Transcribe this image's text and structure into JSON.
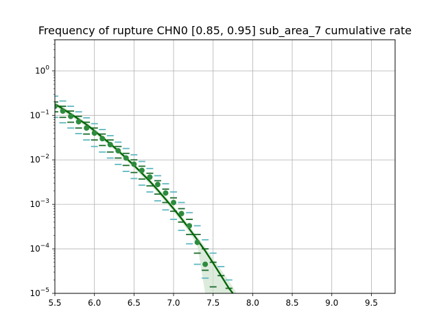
{
  "chart_data": {
    "type": "scatter",
    "title": "Frequency of rupture CHN0 [0.85, 0.95] sub_area_7 cumulative rate",
    "xlabel": "",
    "ylabel": "",
    "xlim": [
      5.5,
      9.8
    ],
    "ylim": [
      1e-05,
      5
    ],
    "yscale": "log",
    "grid": true,
    "x_ticks": [
      5.5,
      6.0,
      6.5,
      7.0,
      7.5,
      8.0,
      8.5,
      9.0,
      9.5
    ],
    "x_tick_labels": [
      "5.5",
      "6.0",
      "6.5",
      "7.0",
      "7.5",
      "8.0",
      "8.5",
      "9.0",
      "9.5"
    ],
    "y_ticks": [
      1e-05,
      0.0001,
      0.001,
      0.01,
      0.1,
      1
    ],
    "y_tick_labels": [
      {
        "base": "10",
        "exp": "−5"
      },
      {
        "base": "10",
        "exp": "−4"
      },
      {
        "base": "10",
        "exp": "−3"
      },
      {
        "base": "10",
        "exp": "−2"
      },
      {
        "base": "10",
        "exp": "−1"
      },
      {
        "base": "10",
        "exp": "0"
      }
    ],
    "colors": {
      "model_line": "#006400",
      "model_band": "#cfe3cf",
      "points": "#2e8b3e",
      "inner_bounds": "#1a6b2a",
      "outer_bounds": "#5fb8c0"
    },
    "model_curve": {
      "x": [
        5.5,
        5.6,
        5.7,
        5.8,
        5.9,
        6.0,
        6.1,
        6.2,
        6.3,
        6.4,
        6.5,
        6.6,
        6.7,
        6.8,
        6.9,
        7.0,
        7.1,
        7.2,
        7.3,
        7.4,
        7.5,
        7.6,
        7.7,
        7.75
      ],
      "y": [
        0.18,
        0.14,
        0.108,
        0.082,
        0.062,
        0.045,
        0.032,
        0.023,
        0.016,
        0.011,
        0.0075,
        0.005,
        0.0033,
        0.0021,
        0.0013,
        0.0008,
        0.00048,
        0.00028,
        0.00016,
        9e-05,
        4.8e-05,
        2.5e-05,
        1.3e-05,
        1e-05
      ]
    },
    "model_band": {
      "x": [
        5.5,
        5.6,
        5.7,
        5.8,
        5.9,
        6.0,
        6.1,
        6.2,
        6.3,
        6.4,
        6.5,
        6.6,
        6.7,
        6.8,
        6.9,
        7.0,
        7.1,
        7.2,
        7.3,
        7.4,
        7.5,
        7.6,
        7.7,
        7.8
      ],
      "upper": [
        0.2,
        0.16,
        0.122,
        0.092,
        0.07,
        0.051,
        0.036,
        0.026,
        0.018,
        0.0125,
        0.0085,
        0.0057,
        0.0037,
        0.0024,
        0.0015,
        0.00092,
        0.00056,
        0.00033,
        0.00019,
        0.00011,
        6e-05,
        3.4e-05,
        1.9e-05,
        1e-05
      ],
      "lower": [
        0.16,
        0.12,
        0.094,
        0.072,
        0.054,
        0.039,
        0.028,
        0.02,
        0.014,
        0.0096,
        0.0065,
        0.0043,
        0.0028,
        0.0018,
        0.0011,
        0.00068,
        0.0004,
        0.00023,
        0.00012,
        1e-05,
        1e-05,
        1e-05,
        1e-05,
        1e-05
      ]
    },
    "observed_points": {
      "x": [
        5.5,
        5.6,
        5.7,
        5.8,
        5.9,
        6.0,
        6.1,
        6.2,
        6.3,
        6.4,
        6.5,
        6.6,
        6.7,
        6.8,
        6.9,
        7.0,
        7.1,
        7.2,
        7.3,
        7.4
      ],
      "y": [
        0.16,
        0.125,
        0.095,
        0.072,
        0.052,
        0.04,
        0.03,
        0.022,
        0.016,
        0.011,
        0.008,
        0.0058,
        0.0041,
        0.0028,
        0.0018,
        0.0011,
        0.00062,
        0.00033,
        0.00014,
        4.5e-05
      ]
    },
    "error_bars": {
      "x": [
        5.5,
        5.6,
        5.7,
        5.8,
        5.9,
        6.0,
        6.1,
        6.2,
        6.3,
        6.4,
        6.5,
        6.6,
        6.7,
        6.8,
        6.9,
        7.0,
        7.1,
        7.2,
        7.3,
        7.4,
        7.5,
        7.6,
        7.7
      ],
      "inner_upper": [
        0.2,
        0.16,
        0.125,
        0.095,
        0.07,
        0.052,
        0.038,
        0.028,
        0.02,
        0.014,
        0.01,
        0.0072,
        0.005,
        0.0034,
        0.0022,
        0.0014,
        0.0008,
        0.00046,
        0.00021,
        0.0001,
        5e-05,
        2.5e-05,
        1.3e-05
      ],
      "inner_lower": [
        0.12,
        0.09,
        0.07,
        0.052,
        0.038,
        0.028,
        0.021,
        0.015,
        0.011,
        0.0075,
        0.0052,
        0.0037,
        0.0026,
        0.0017,
        0.0011,
        0.0007,
        0.0004,
        0.00021,
        8e-05,
        3.3e-05,
        1.4e-05,
        7e-06,
        4e-06
      ],
      "outer_upper": [
        0.27,
        0.21,
        0.16,
        0.12,
        0.088,
        0.065,
        0.048,
        0.035,
        0.025,
        0.018,
        0.013,
        0.0092,
        0.0064,
        0.0044,
        0.0029,
        0.0019,
        0.0011,
        0.00065,
        0.00033,
        0.00016,
        8e-05,
        4e-05,
        2e-05
      ],
      "outer_lower": [
        0.09,
        0.068,
        0.052,
        0.039,
        0.028,
        0.02,
        0.015,
        0.011,
        0.0079,
        0.0055,
        0.0038,
        0.0027,
        0.0019,
        0.0012,
        0.00075,
        0.00046,
        0.00026,
        0.00013,
        4.5e-05,
        2.2e-05,
        8e-06,
        4e-06,
        2e-06
      ]
    }
  }
}
